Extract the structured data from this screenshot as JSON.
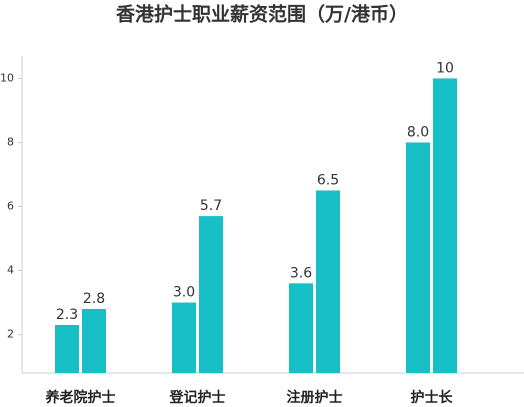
{
  "chart_data": {
    "type": "bar",
    "title": "香港护士职业薪资范围（万/港币）",
    "categories": [
      "养老院护士",
      "登记护士",
      "注册护士",
      "护士长"
    ],
    "series": [
      {
        "color": "#17bfc6",
        "values": [
          2.3,
          3.0,
          3.6,
          8.0
        ],
        "value_labels": [
          "2.3",
          "3.0",
          "3.6",
          "8.0"
        ]
      },
      {
        "color": "#17bfc6",
        "values": [
          2.8,
          5.7,
          6.5,
          10
        ],
        "value_labels": [
          "2.8",
          "5.7",
          "6.5",
          "10"
        ]
      }
    ],
    "ylim": [
      0.8,
      10.7
    ],
    "yticks": [
      2,
      4,
      6,
      8,
      10
    ],
    "grid": false
  }
}
